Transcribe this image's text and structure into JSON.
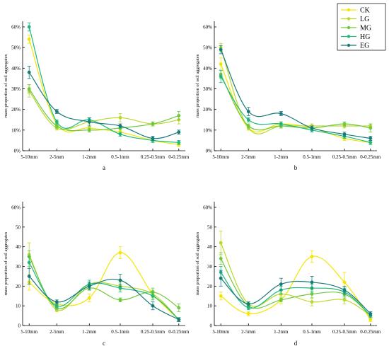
{
  "figure": {
    "legend": {
      "placement": "top-right",
      "entries": [
        {
          "name": "CK",
          "color": "#f2e600"
        },
        {
          "name": "LG",
          "color": "#b8d82a"
        },
        {
          "name": "MG",
          "color": "#6fc83c"
        },
        {
          "name": "HG",
          "color": "#1eb87e"
        },
        {
          "name": "EG",
          "color": "#167a78"
        }
      ]
    }
  },
  "chart_data": [
    {
      "type": "line",
      "panel_label": "a",
      "ylabel": "mass proportion of soil aggregates",
      "categories": [
        "5-10mm",
        "2-5mm",
        "1-2mm",
        "0.5-1mm",
        "0.25-0.5mm",
        "0-0.25mm"
      ],
      "ylim": [
        0,
        60
      ],
      "yticks": [
        "0%",
        "10%",
        "20%",
        "30%",
        "40%",
        "50%",
        "60%"
      ],
      "grid": false,
      "series": [
        {
          "name": "CK",
          "values": [
            54,
            13,
            11,
            9,
            5,
            3
          ],
          "errors": [
            2,
            1,
            1,
            1,
            1,
            1
          ]
        },
        {
          "name": "LG",
          "values": [
            29,
            11,
            14,
            16,
            13,
            15
          ],
          "errors": [
            3,
            1,
            1,
            2,
            1,
            2
          ]
        },
        {
          "name": "MG",
          "values": [
            30,
            12,
            10,
            11,
            13,
            17
          ],
          "errors": [
            2,
            1,
            1,
            1,
            1,
            2
          ]
        },
        {
          "name": "HG",
          "values": [
            60,
            14,
            15,
            8,
            5,
            4
          ],
          "errors": [
            2,
            1,
            1,
            1,
            1,
            1
          ]
        },
        {
          "name": "EG",
          "values": [
            38,
            19,
            14,
            12,
            6,
            9
          ],
          "errors": [
            3,
            1,
            2,
            1,
            1,
            1
          ]
        }
      ]
    },
    {
      "type": "line",
      "panel_label": "b",
      "ylabel": "mass proportion of soil aggregates",
      "categories": [
        "5-10mm",
        "2-5mm",
        "1-2mm",
        "0.5-1mm",
        "0.25-0.5mm",
        "0-0.25mm"
      ],
      "ylim": [
        0,
        60
      ],
      "yticks": [
        "0%",
        "10%",
        "20%",
        "30%",
        "40%",
        "50%",
        "60%"
      ],
      "grid": false,
      "series": [
        {
          "name": "CK",
          "values": [
            42,
            11,
            13,
            11,
            6,
            4
          ],
          "errors": [
            3,
            1,
            1,
            1,
            1,
            1
          ]
        },
        {
          "name": "LG",
          "values": [
            50,
            11,
            12,
            12,
            12,
            12
          ],
          "errors": [
            2,
            1,
            1,
            1,
            1,
            1
          ]
        },
        {
          "name": "MG",
          "values": [
            37,
            12,
            12,
            11,
            13,
            11
          ],
          "errors": [
            2,
            1,
            1,
            1,
            1,
            2
          ]
        },
        {
          "name": "HG",
          "values": [
            36,
            15,
            13,
            10,
            7,
            4
          ],
          "errors": [
            3,
            1,
            1,
            1,
            1,
            1
          ]
        },
        {
          "name": "EG",
          "values": [
            49,
            19,
            18,
            11,
            8,
            6
          ],
          "errors": [
            2,
            2,
            1,
            1,
            1,
            1
          ]
        }
      ]
    },
    {
      "type": "line",
      "panel_label": "c",
      "ylabel": "mass proportion of soil aggregates",
      "categories": [
        "5-10mm",
        "2-5mm",
        "1-2mm",
        "0.5-1mm",
        "0.25-0.5mm",
        "0-0.25mm"
      ],
      "ylim": [
        0,
        60
      ],
      "yticks": [
        "0",
        "10",
        "20",
        "30",
        "40",
        "50",
        "60%"
      ],
      "grid": false,
      "series": [
        {
          "name": "CK",
          "values": [
            22,
            11,
            14,
            37,
            16,
            3
          ],
          "errors": [
            4,
            1,
            2,
            3,
            2,
            1
          ]
        },
        {
          "name": "LG",
          "values": [
            36,
            8,
            21,
            20,
            16,
            3
          ],
          "errors": [
            6,
            1,
            1,
            2,
            2,
            1
          ]
        },
        {
          "name": "MG",
          "values": [
            35,
            9,
            19,
            13,
            17,
            9
          ],
          "errors": [
            3,
            1,
            1,
            1,
            2,
            2
          ]
        },
        {
          "name": "HG",
          "values": [
            32,
            10,
            21,
            19,
            15,
            3
          ],
          "errors": [
            3,
            1,
            2,
            2,
            2,
            1
          ]
        },
        {
          "name": "EG",
          "values": [
            25,
            12,
            20,
            23,
            10,
            3
          ],
          "errors": [
            4,
            1,
            2,
            3,
            2,
            1
          ]
        }
      ]
    },
    {
      "type": "line",
      "panel_label": "d",
      "ylabel": "mass proportion of soil aggregates",
      "categories": [
        "5-10mm",
        "2-5mm",
        "1-2mm",
        "0.5-1mm",
        "0.25-0.5mm",
        "0-0.25mm"
      ],
      "ylim": [
        0,
        60
      ],
      "yticks": [
        "0",
        "10",
        "20",
        "30",
        "40",
        "50",
        "60%"
      ],
      "grid": false,
      "series": [
        {
          "name": "CK",
          "values": [
            15,
            6,
            13,
            35,
            22,
            3
          ],
          "errors": [
            2,
            1,
            2,
            3,
            5,
            1
          ]
        },
        {
          "name": "LG",
          "values": [
            42,
            11,
            16,
            12,
            13,
            5
          ],
          "errors": [
            6,
            1,
            2,
            2,
            2,
            1
          ]
        },
        {
          "name": "MG",
          "values": [
            34,
            10,
            13,
            16,
            16,
            5
          ],
          "errors": [
            3,
            1,
            1,
            2,
            2,
            1
          ]
        },
        {
          "name": "HG",
          "values": [
            27,
            9,
            18,
            19,
            17,
            5
          ],
          "errors": [
            3,
            1,
            2,
            2,
            2,
            1
          ]
        },
        {
          "name": "EG",
          "values": [
            24,
            11,
            21,
            22,
            18,
            6
          ],
          "errors": [
            4,
            1,
            3,
            3,
            2,
            1
          ]
        }
      ]
    }
  ]
}
